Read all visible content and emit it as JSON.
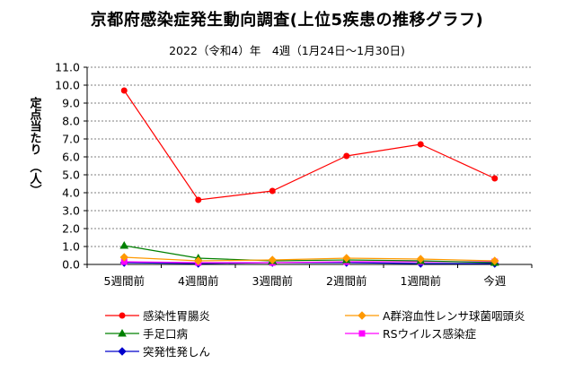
{
  "chart_data": {
    "type": "line",
    "title": "京都府感染症発生動向調査(上位5疾患の推移グラフ)",
    "subtitle": "2022（令和4）年　4週（1月24日～1月30日)",
    "ylabel": "定点当たり　（人）",
    "categories": [
      "5週間前",
      "4週間前",
      "3週間前",
      "2週間前",
      "1週間前",
      "今週"
    ],
    "ylim": [
      0,
      11
    ],
    "yticks": [
      "0.0",
      "1.0",
      "2.0",
      "3.0",
      "4.0",
      "5.0",
      "6.0",
      "7.0",
      "8.0",
      "9.0",
      "10.0",
      "11.0"
    ],
    "grid": true,
    "legend_position": "bottom",
    "series": [
      {
        "name": "感染性胃腸炎",
        "color": "#ff0000",
        "marker": "circle",
        "values": [
          9.7,
          3.6,
          4.1,
          6.05,
          6.7,
          4.8
        ]
      },
      {
        "name": "A群溶血性レンサ球菌咽頭炎",
        "color": "#ff9900",
        "marker": "diamond",
        "values": [
          0.4,
          0.2,
          0.25,
          0.35,
          0.3,
          0.2
        ]
      },
      {
        "name": "手足口病",
        "color": "#008000",
        "marker": "triangle",
        "values": [
          1.05,
          0.35,
          0.2,
          0.25,
          0.2,
          0.1
        ]
      },
      {
        "name": "RSウイルス感染症",
        "color": "#ff00ff",
        "marker": "square",
        "values": [
          0.15,
          0.1,
          0.1,
          0.15,
          0.15,
          0.15
        ]
      },
      {
        "name": "突発性発しん",
        "color": "#0000cc",
        "marker": "diamond",
        "values": [
          0.1,
          0.05,
          0.1,
          0.1,
          0.05,
          0.05
        ]
      }
    ]
  }
}
